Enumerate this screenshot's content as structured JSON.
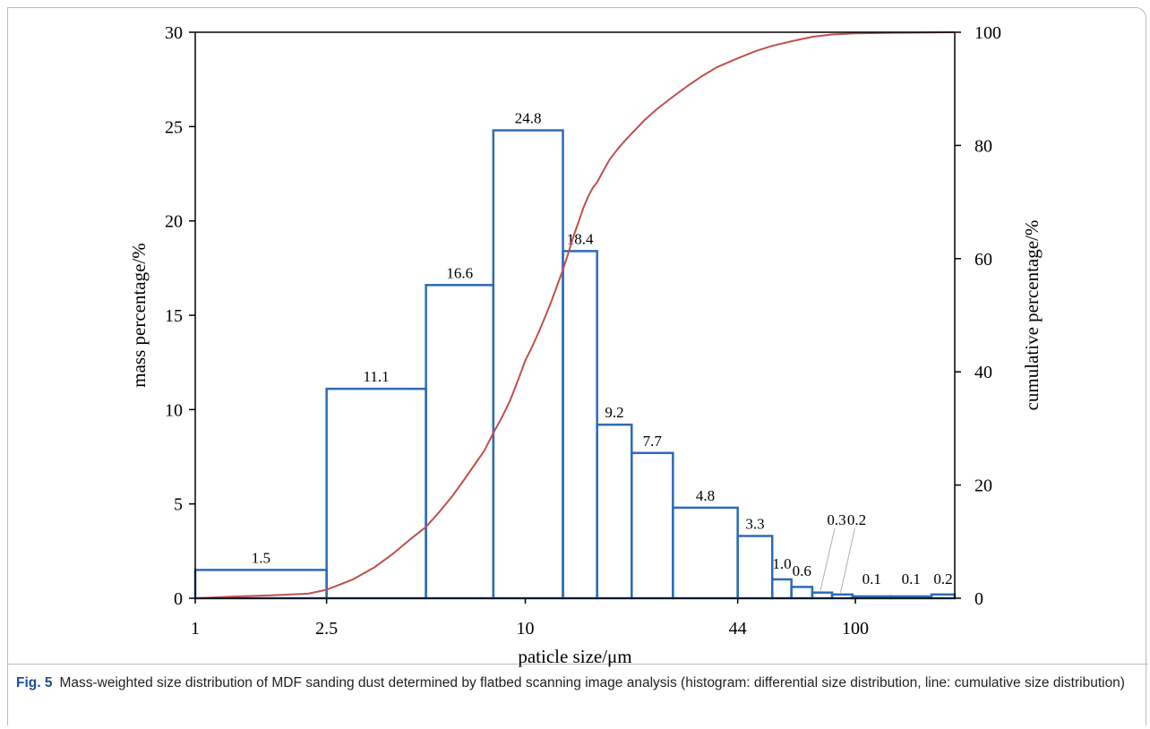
{
  "caption": {
    "fig_no": "Fig. 5",
    "text": "Mass-weighted size distribution of MDF sanding dust determined by flatbed scanning image analysis (histogram: differential size distribution, line: cumulative size distribution)"
  },
  "colors": {
    "histogram": "#2e6bb5",
    "cumulative": "#c0504d",
    "axis": "#000000",
    "leader": "#b0b0b0"
  },
  "chart_data": {
    "type": "bar",
    "xlabel": "paticle size/μm",
    "ylabel": "mass percentage/%",
    "y2label": "cumulative percentage/%",
    "x_scale": "log",
    "xlim": [
      1,
      200
    ],
    "ylim": [
      0,
      30
    ],
    "y2lim": [
      0,
      100
    ],
    "x_ticks": [
      {
        "value": 1,
        "label": "1"
      },
      {
        "value": 2.5,
        "label": "2.5"
      },
      {
        "value": 10,
        "label": "10"
      },
      {
        "value": 44,
        "label": "44"
      },
      {
        "value": 100,
        "label": "100"
      }
    ],
    "y_ticks": [
      {
        "value": 0,
        "label": "0"
      },
      {
        "value": 5,
        "label": "5"
      },
      {
        "value": 10,
        "label": "10"
      },
      {
        "value": 15,
        "label": "15"
      },
      {
        "value": 20,
        "label": "20"
      },
      {
        "value": 25,
        "label": "25"
      },
      {
        "value": 30,
        "label": "30"
      }
    ],
    "y2_ticks": [
      {
        "value": 0,
        "label": "0"
      },
      {
        "value": 20,
        "label": "20"
      },
      {
        "value": 40,
        "label": "40"
      },
      {
        "value": 60,
        "label": "60"
      },
      {
        "value": 80,
        "label": "80"
      },
      {
        "value": 100,
        "label": "100"
      }
    ],
    "bins": [
      {
        "from": 1,
        "to": 2.5,
        "value": 1.5,
        "label": "1.5"
      },
      {
        "from": 2.5,
        "to": 5,
        "value": 11.1,
        "label": "11.1"
      },
      {
        "from": 5,
        "to": 8,
        "value": 16.6,
        "label": "16.6"
      },
      {
        "from": 8,
        "to": 13,
        "value": 24.8,
        "label": "24.8"
      },
      {
        "from": 13,
        "to": 16.5,
        "value": 18.4,
        "label": "18.4"
      },
      {
        "from": 16.5,
        "to": 21,
        "value": 9.2,
        "label": "9.2"
      },
      {
        "from": 21,
        "to": 28,
        "value": 7.7,
        "label": "7.7"
      },
      {
        "from": 28,
        "to": 44,
        "value": 4.8,
        "label": "4.8"
      },
      {
        "from": 44,
        "to": 56,
        "value": 3.3,
        "label": "3.3"
      },
      {
        "from": 56,
        "to": 64,
        "value": 1.0,
        "label": "1.0"
      },
      {
        "from": 64,
        "to": 74,
        "value": 0.6,
        "label": "0.6"
      },
      {
        "from": 74,
        "to": 85,
        "value": 0.3,
        "label": "0.3"
      },
      {
        "from": 85,
        "to": 98,
        "value": 0.2,
        "label": "0.2"
      },
      {
        "from": 98,
        "to": 128,
        "value": 0.1,
        "label": "0.1"
      },
      {
        "from": 128,
        "to": 170,
        "value": 0.1,
        "label": "0.1"
      },
      {
        "from": 170,
        "to": 200,
        "value": 0.2,
        "label": "0.2"
      }
    ],
    "cumulative": {
      "x": [
        1,
        1.3,
        1.7,
        2.2,
        2.5,
        3.0,
        3.5,
        4.0,
        4.5,
        5.0,
        5.5,
        6.0,
        6.5,
        7.0,
        7.5,
        8.0,
        8.5,
        9.0,
        9.5,
        10,
        10.5,
        11,
        11.5,
        12,
        12.5,
        13,
        13.5,
        14,
        14.5,
        15,
        15.5,
        16,
        16.5,
        17,
        18,
        19,
        20,
        21,
        23,
        25,
        28,
        31,
        34,
        38,
        44,
        50,
        56,
        64,
        74,
        85,
        100,
        130,
        170,
        200
      ],
      "y": [
        0,
        0.3,
        0.5,
        0.8,
        1.5,
        3.3,
        5.5,
        8,
        10.5,
        12.6,
        15.3,
        18,
        20.8,
        23.5,
        26,
        29.2,
        32,
        35,
        38.5,
        42,
        44.5,
        47.1,
        49.8,
        52.5,
        55.3,
        58,
        61,
        64,
        66.5,
        69,
        71,
        72.5,
        73.5,
        74.9,
        77.5,
        79.3,
        80.8,
        82.1,
        84.5,
        86.4,
        88.6,
        90.5,
        92.1,
        93.8,
        95.4,
        96.7,
        97.6,
        98.4,
        99.2,
        99.6,
        99.8,
        99.9,
        99.95,
        100
      ]
    },
    "legend": "none",
    "grid": false
  }
}
